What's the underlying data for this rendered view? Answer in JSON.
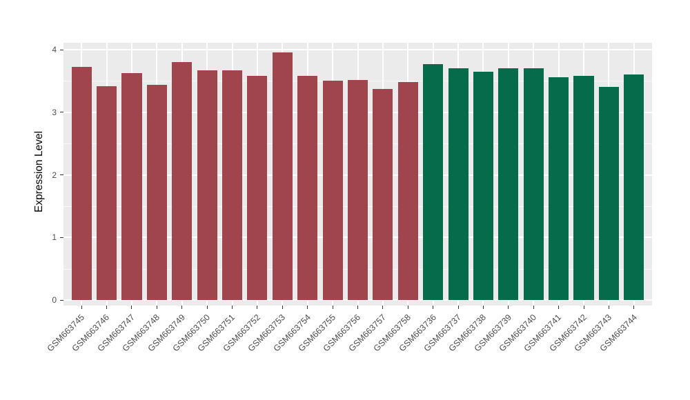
{
  "chart_data": {
    "type": "bar",
    "title": "",
    "xlabel": "",
    "ylabel": "Expression Level",
    "ylim": [
      0,
      4
    ],
    "yticks": [
      0,
      1,
      2,
      3,
      4
    ],
    "grid": true,
    "legend": "none",
    "panel_background": "#EBEBEB",
    "gridline_color": "#FFFFFF",
    "axis_text_color": "#4D4D4D",
    "group_colors": {
      "red": "#A0444D",
      "green": "#066B4B"
    },
    "bars": [
      {
        "label": "GSM663745",
        "value": 3.72,
        "group": "red"
      },
      {
        "label": "GSM663746",
        "value": 3.42,
        "group": "red"
      },
      {
        "label": "GSM663747",
        "value": 3.62,
        "group": "red"
      },
      {
        "label": "GSM663748",
        "value": 3.44,
        "group": "red"
      },
      {
        "label": "GSM663749",
        "value": 3.8,
        "group": "red"
      },
      {
        "label": "GSM663750",
        "value": 3.67,
        "group": "red"
      },
      {
        "label": "GSM663751",
        "value": 3.67,
        "group": "red"
      },
      {
        "label": "GSM663752",
        "value": 3.58,
        "group": "red"
      },
      {
        "label": "GSM663753",
        "value": 3.96,
        "group": "red"
      },
      {
        "label": "GSM663754",
        "value": 3.58,
        "group": "red"
      },
      {
        "label": "GSM663755",
        "value": 3.5,
        "group": "red"
      },
      {
        "label": "GSM663756",
        "value": 3.52,
        "group": "red"
      },
      {
        "label": "GSM663757",
        "value": 3.37,
        "group": "red"
      },
      {
        "label": "GSM663758",
        "value": 3.48,
        "group": "red"
      },
      {
        "label": "GSM663736",
        "value": 3.77,
        "group": "green"
      },
      {
        "label": "GSM663737",
        "value": 3.7,
        "group": "green"
      },
      {
        "label": "GSM663738",
        "value": 3.65,
        "group": "green"
      },
      {
        "label": "GSM663739",
        "value": 3.7,
        "group": "green"
      },
      {
        "label": "GSM663740",
        "value": 3.7,
        "group": "green"
      },
      {
        "label": "GSM663741",
        "value": 3.56,
        "group": "green"
      },
      {
        "label": "GSM663742",
        "value": 3.58,
        "group": "green"
      },
      {
        "label": "GSM663743",
        "value": 3.4,
        "group": "green"
      },
      {
        "label": "GSM663744",
        "value": 3.6,
        "group": "green"
      }
    ]
  }
}
